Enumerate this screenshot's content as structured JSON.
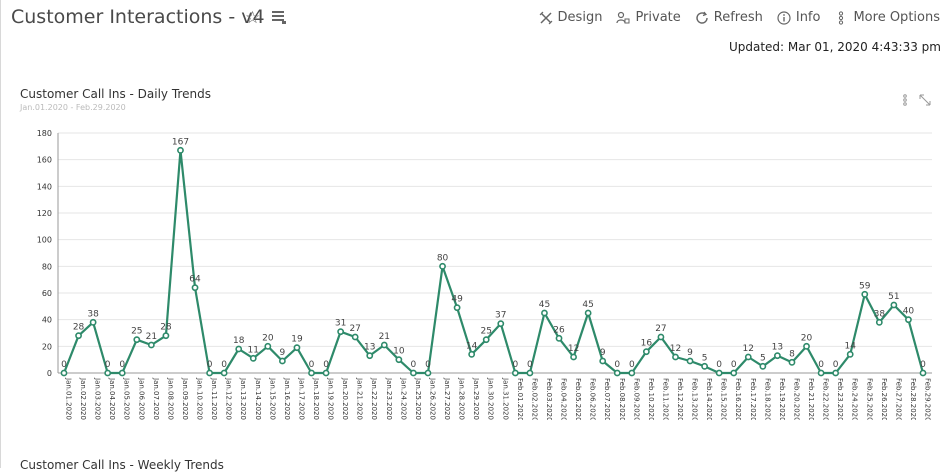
{
  "header": {
    "title": "Customer Interactions - v4",
    "toolbar": {
      "design": "Design",
      "private": "Private",
      "refresh": "Refresh",
      "info": "Info",
      "more": "More Options"
    },
    "updated": "Updated: Mar 01, 2020 4:43:33 pm"
  },
  "widget": {
    "title": "Customer Call Ins - Daily Trends",
    "subtitle": "Jan.01.2020 - Feb.29.2020"
  },
  "next_widget": {
    "title": "Customer Call Ins - Weekly Trends"
  },
  "chart_data": {
    "type": "line",
    "color": "#2e8a6a",
    "ylim": [
      0,
      180
    ],
    "yticks": [
      0,
      20,
      40,
      60,
      80,
      100,
      120,
      140,
      160,
      180
    ],
    "grid": true,
    "categories": [
      "Jan.01.2020",
      "Jan.02.2020",
      "Jan.03.2020",
      "Jan.04.2020",
      "Jan.05.2020",
      "Jan.06.2020",
      "Jan.07.2020",
      "Jan.08.2020",
      "Jan.09.2020",
      "Jan.10.2020",
      "Jan.11.2020",
      "Jan.12.2020",
      "Jan.13.2020",
      "Jan.14.2020",
      "Jan.15.2020",
      "Jan.16.2020",
      "Jan.17.2020",
      "Jan.18.2020",
      "Jan.19.2020",
      "Jan.20.2020",
      "Jan.21.2020",
      "Jan.22.2020",
      "Jan.23.2020",
      "Jan.24.2020",
      "Jan.25.2020",
      "Jan.26.2020",
      "Jan.27.2020",
      "Jan.28.2020",
      "Jan.29.2020",
      "Jan.30.2020",
      "Jan.31.2020",
      "Feb.01.2020",
      "Feb.02.2020",
      "Feb.03.2020",
      "Feb.04.2020",
      "Feb.05.2020",
      "Feb.06.2020",
      "Feb.07.2020",
      "Feb.08.2020",
      "Feb.09.2020",
      "Feb.10.2020",
      "Feb.11.2020",
      "Feb.12.2020",
      "Feb.13.2020",
      "Feb.14.2020",
      "Feb.15.2020",
      "Feb.16.2020",
      "Feb.17.2020",
      "Feb.18.2020",
      "Feb.19.2020",
      "Feb.20.2020",
      "Feb.21.2020",
      "Feb.22.2020",
      "Feb.23.2020",
      "Feb.24.2020",
      "Feb.25.2020",
      "Feb.26.2020",
      "Feb.27.2020",
      "Feb.28.2020",
      "Feb.29.2020"
    ],
    "values": [
      0,
      28,
      38,
      0,
      0,
      25,
      21,
      28,
      167,
      64,
      0,
      0,
      18,
      11,
      20,
      9,
      19,
      0,
      0,
      31,
      27,
      13,
      21,
      10,
      0,
      0,
      80,
      49,
      14,
      25,
      37,
      0,
      0,
      45,
      26,
      12,
      45,
      9,
      0,
      0,
      16,
      27,
      12,
      9,
      5,
      0,
      0,
      12,
      5,
      13,
      8,
      20,
      0,
      0,
      14,
      59,
      38,
      51,
      40,
      0
    ]
  }
}
